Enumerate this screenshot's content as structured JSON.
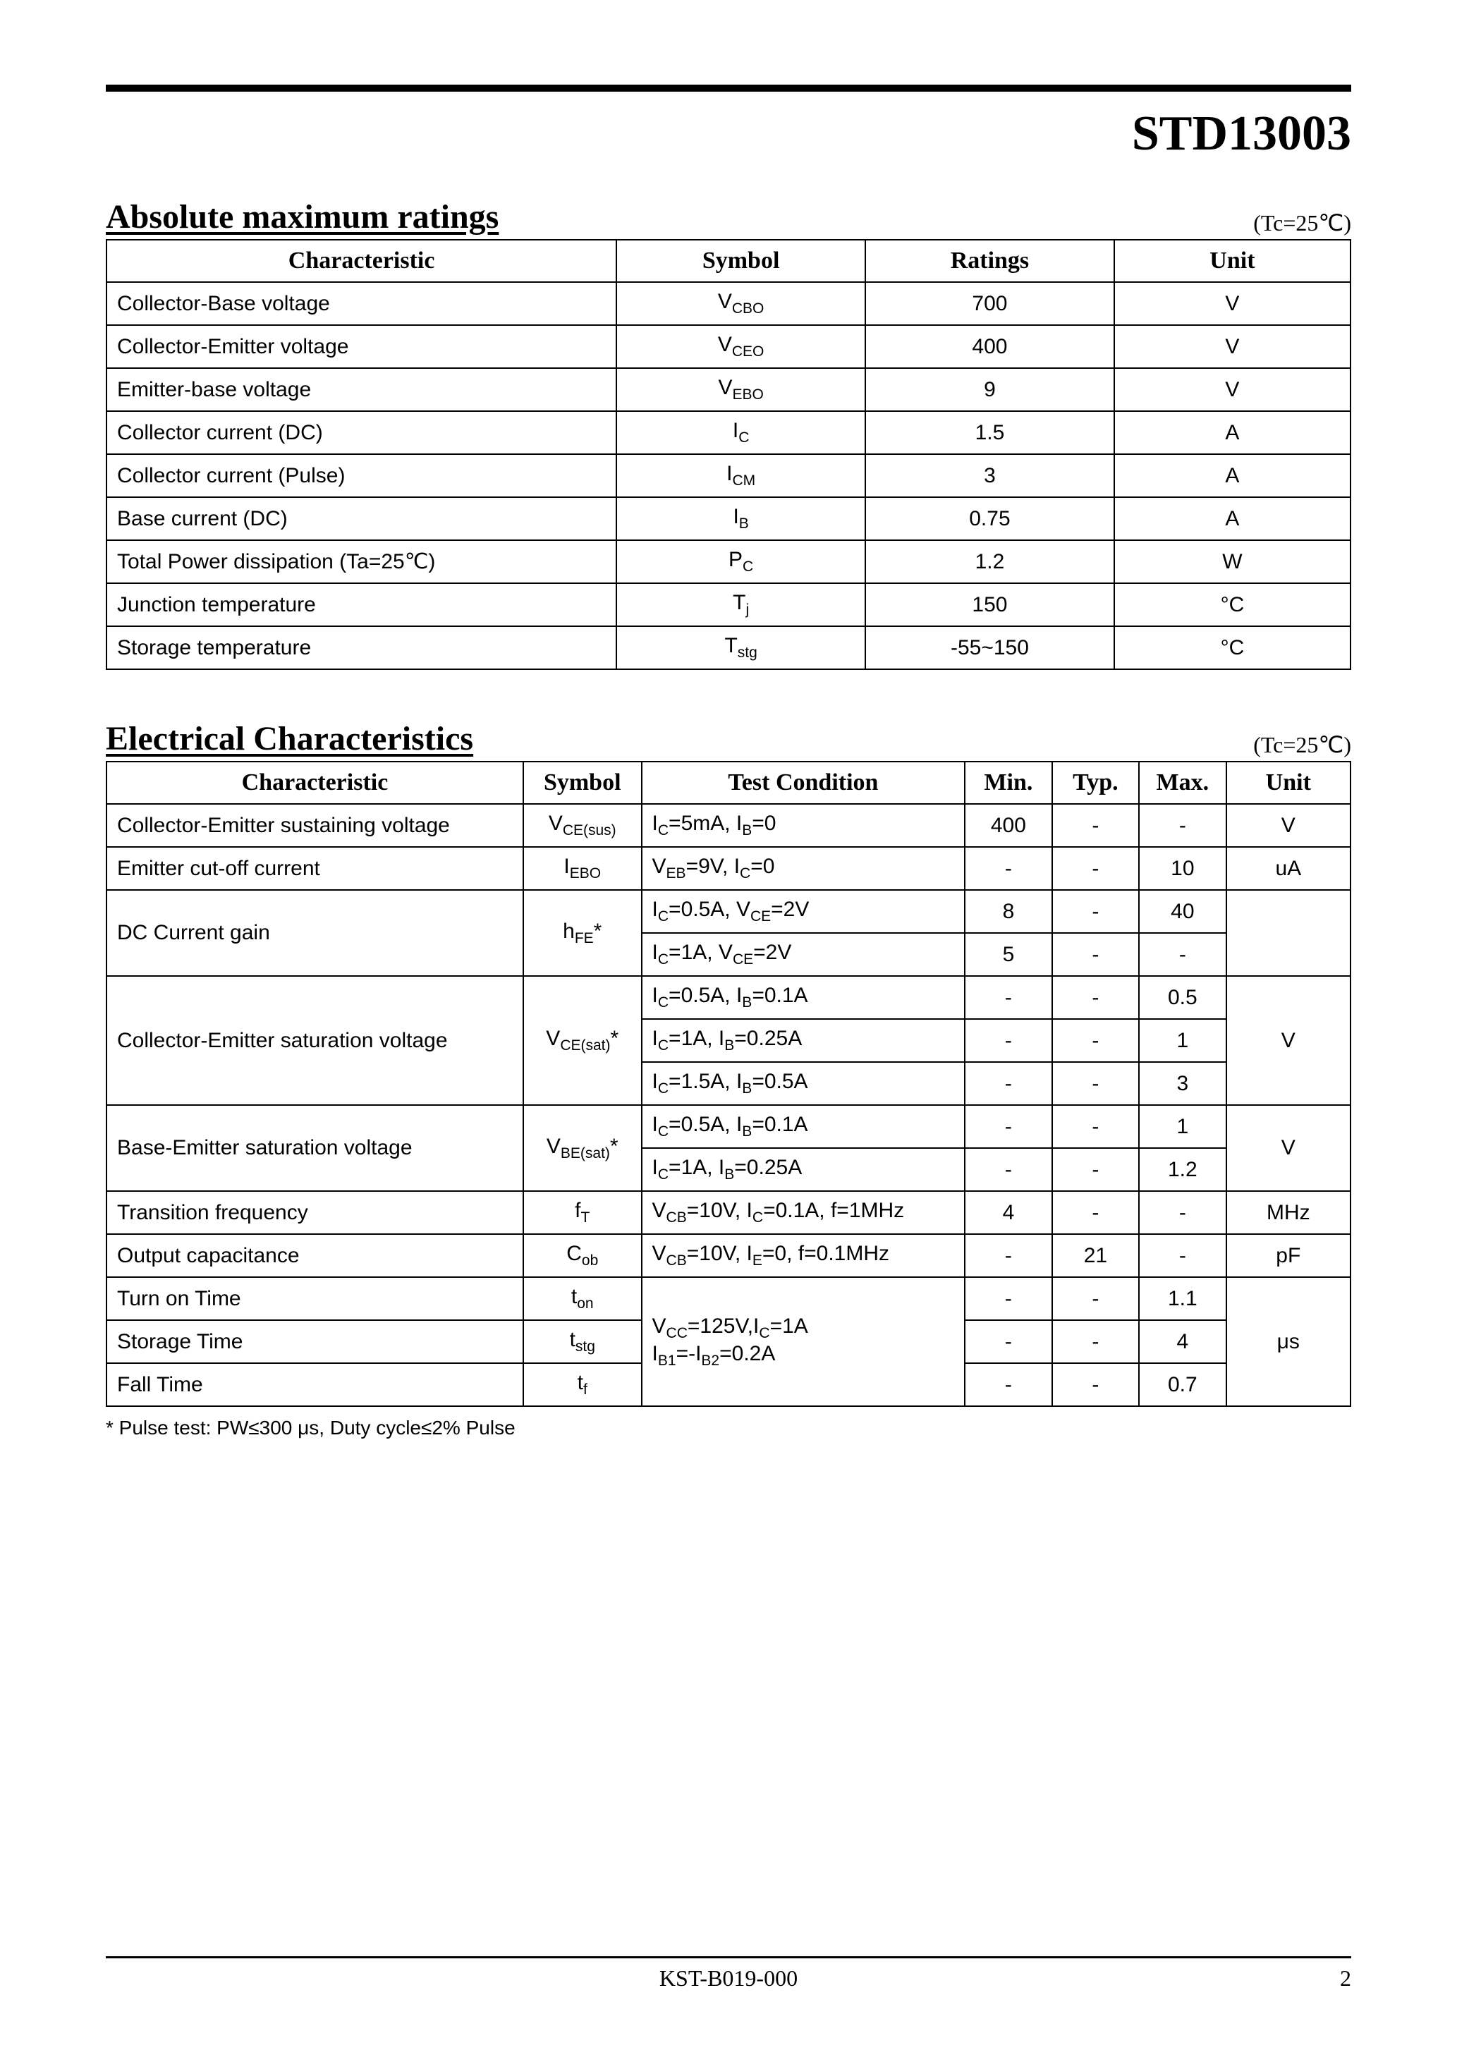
{
  "part_number": "STD13003",
  "tc_note": "(Tc=25℃)",
  "abs_max": {
    "title": "Absolute maximum ratings",
    "headers": [
      "Characteristic",
      "Symbol",
      "Ratings",
      "Unit"
    ],
    "rows": [
      {
        "char": "Collector-Base voltage",
        "sym": "V<sub>CBO</sub>",
        "rating": "700",
        "unit": "V"
      },
      {
        "char": "Collector-Emitter voltage",
        "sym": "V<sub>CEO</sub>",
        "rating": "400",
        "unit": "V"
      },
      {
        "char": "Emitter-base voltage",
        "sym": "V<sub>EBO</sub>",
        "rating": "9",
        "unit": "V"
      },
      {
        "char": "Collector current (DC)",
        "sym": "I<sub>C</sub>",
        "rating": "1.5",
        "unit": "A"
      },
      {
        "char": "Collector current (Pulse)",
        "sym": "I<sub>CM</sub>",
        "rating": "3",
        "unit": "A"
      },
      {
        "char": "Base current (DC)",
        "sym": "I<sub>B</sub>",
        "rating": "0.75",
        "unit": "A"
      },
      {
        "char": "Total Power dissipation (Ta=25℃)",
        "sym": "P<sub>C</sub>",
        "rating": "1.2",
        "unit": "W"
      },
      {
        "char": "Junction temperature",
        "sym": "T<sub>j</sub>",
        "rating": "150",
        "unit": "°C"
      },
      {
        "char": "Storage temperature",
        "sym": "T<sub>stg</sub>",
        "rating": "-55~150",
        "unit": "°C"
      }
    ]
  },
  "elec_char": {
    "title": "Electrical Characteristics",
    "headers": [
      "Characteristic",
      "Symbol",
      "Test Condition",
      "Min.",
      "Typ.",
      "Max.",
      "Unit"
    ],
    "groups": [
      {
        "char": "Collector-Emitter sustaining voltage",
        "sym": "V<sub>CE(sus)</sub>",
        "unit": "V",
        "rows": [
          {
            "cond": "I<sub>C</sub>=5mA, I<sub>B</sub>=0",
            "min": "400",
            "typ": "-",
            "max": "-"
          }
        ]
      },
      {
        "char": "Emitter cut-off current",
        "sym": "I<sub>EBO</sub>",
        "unit": "uA",
        "rows": [
          {
            "cond": "V<sub>EB</sub>=9V, I<sub>C</sub>=0",
            "min": "-",
            "typ": "-",
            "max": "10"
          }
        ]
      },
      {
        "char": "DC Current gain",
        "sym": "h<sub>FE</sub>*",
        "unit": "",
        "rows": [
          {
            "cond": "I<sub>C</sub>=0.5A, V<sub>CE</sub>=2V",
            "min": "8",
            "typ": "-",
            "max": "40"
          },
          {
            "cond": "I<sub>C</sub>=1A, V<sub>CE</sub>=2V",
            "min": "5",
            "typ": "-",
            "max": "-"
          }
        ]
      },
      {
        "char": "Collector-Emitter saturation voltage",
        "sym": "V<sub>CE(sat)</sub>*",
        "unit": "V",
        "rows": [
          {
            "cond": "I<sub>C</sub>=0.5A, I<sub>B</sub>=0.1A",
            "min": "-",
            "typ": "-",
            "max": "0.5"
          },
          {
            "cond": "I<sub>C</sub>=1A, I<sub>B</sub>=0.25A",
            "min": "-",
            "typ": "-",
            "max": "1"
          },
          {
            "cond": "I<sub>C</sub>=1.5A, I<sub>B</sub>=0.5A",
            "min": "-",
            "typ": "-",
            "max": "3"
          }
        ]
      },
      {
        "char": "Base-Emitter saturation voltage",
        "sym": "V<sub>BE(sat)</sub>*",
        "unit": "V",
        "rows": [
          {
            "cond": "I<sub>C</sub>=0.5A, I<sub>B</sub>=0.1A",
            "min": "-",
            "typ": "-",
            "max": "1"
          },
          {
            "cond": "I<sub>C</sub>=1A, I<sub>B</sub>=0.25A",
            "min": "-",
            "typ": "-",
            "max": "1.2"
          }
        ]
      },
      {
        "char": "Transition frequency",
        "sym": "f<sub>T</sub>",
        "unit": "MHz",
        "rows": [
          {
            "cond": "V<sub>CB</sub>=10V, I<sub>C</sub>=0.1A, f=1MHz",
            "min": "4",
            "typ": "-",
            "max": "-"
          }
        ]
      },
      {
        "char": "Output capacitance",
        "sym": "C<sub>ob</sub>",
        "unit": "pF",
        "rows": [
          {
            "cond": "V<sub>CB</sub>=10V, I<sub>E</sub>=0, f=0.1MHz",
            "min": "-",
            "typ": "21",
            "max": "-"
          }
        ]
      }
    ],
    "timing": {
      "cond": "V<sub>CC</sub>=125V,I<sub>C</sub>=1A<br>I<sub>B1</sub>=-I<sub>B2</sub>=0.2A",
      "unit": "μs",
      "rows": [
        {
          "char": "Turn on Time",
          "sym": "t<sub>on</sub>",
          "min": "-",
          "typ": "-",
          "max": "1.1"
        },
        {
          "char": "Storage Time",
          "sym": "t<sub>stg</sub>",
          "min": "-",
          "typ": "-",
          "max": "4"
        },
        {
          "char": "Fall Time",
          "sym": "t<sub>f</sub>",
          "min": "-",
          "typ": "-",
          "max": "0.7"
        }
      ]
    }
  },
  "footnote": "* Pulse test: PW≤300 μs, Duty cycle≤2% Pulse",
  "footer": {
    "doc_code": "KST-B019-000",
    "page": "2"
  },
  "style": {
    "col_widths_abs": [
      "41%",
      "20%",
      "20%",
      "19%"
    ],
    "col_widths_elec": [
      "33.5%",
      "9.5%",
      "26%",
      "7%",
      "7%",
      "7%",
      "10%"
    ]
  }
}
